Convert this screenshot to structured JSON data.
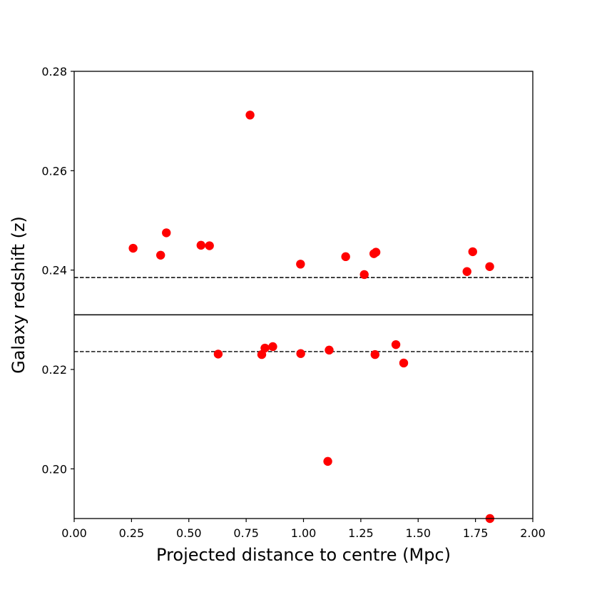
{
  "chart_data": {
    "type": "scatter",
    "xlabel": "Projected distance to centre (Mpc)",
    "ylabel": "Galaxy redshift (z)",
    "xlim": [
      0.0,
      2.0
    ],
    "ylim": [
      0.19,
      0.28
    ],
    "x_ticks": [
      "0.00",
      "0.25",
      "0.50",
      "0.75",
      "1.00",
      "1.25",
      "1.50",
      "1.75",
      "2.00"
    ],
    "y_ticks": [
      "0.20",
      "0.22",
      "0.24",
      "0.26",
      "0.28"
    ],
    "grid": false,
    "colors": {
      "points": "#ff0000",
      "lines": "#000000"
    },
    "reference_lines": [
      {
        "y": 0.2385,
        "style": "dashed"
      },
      {
        "y": 0.231,
        "style": "solid"
      },
      {
        "y": 0.2236,
        "style": "dashed"
      }
    ],
    "series": [
      {
        "x": [
          0.257,
          0.377,
          0.402,
          0.553,
          0.59,
          0.767,
          0.987,
          1.184,
          1.265,
          1.307,
          1.316,
          1.713,
          1.738,
          1.812,
          0.628,
          0.818,
          0.832,
          0.866,
          0.988,
          1.112,
          1.312,
          1.403,
          1.437,
          1.106,
          1.813
        ],
        "y": [
          0.2444,
          0.243,
          0.2475,
          0.245,
          0.2449,
          0.2712,
          0.2412,
          0.2427,
          0.2391,
          0.2433,
          0.2436,
          0.2397,
          0.2437,
          0.2407,
          0.2231,
          0.223,
          0.2243,
          0.2246,
          0.2232,
          0.2239,
          0.223,
          0.225,
          0.2213,
          0.2015,
          0.19
        ]
      }
    ]
  }
}
